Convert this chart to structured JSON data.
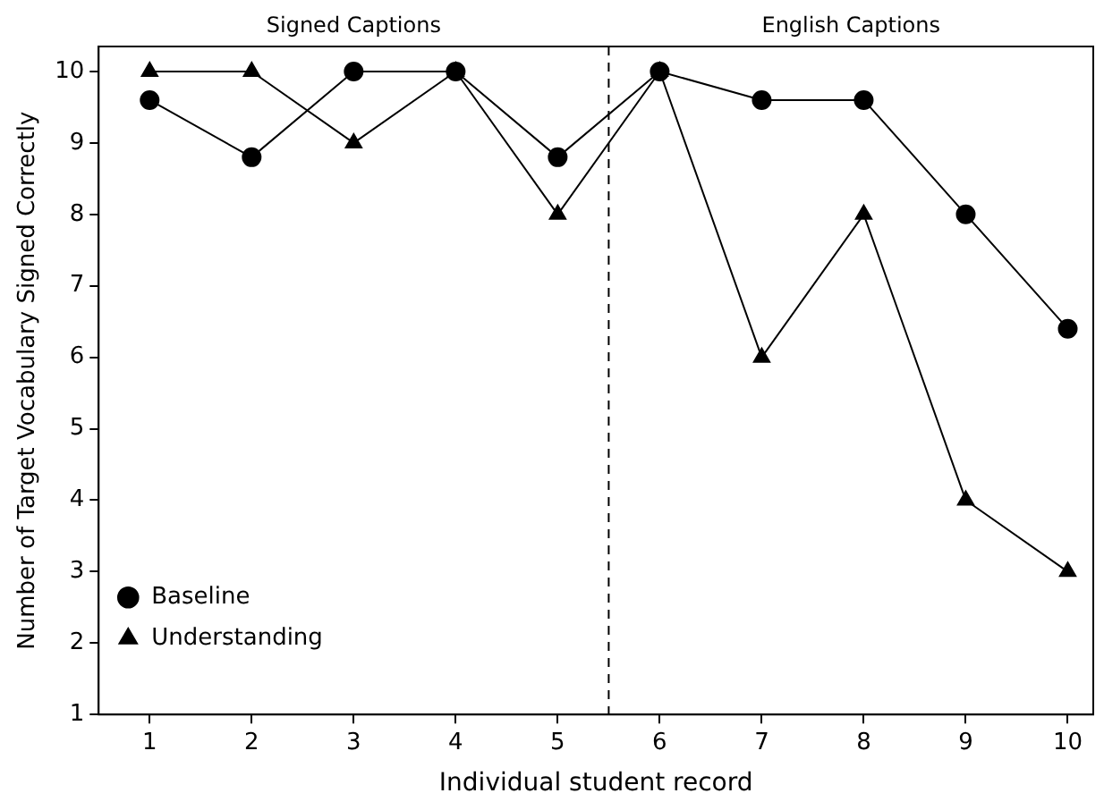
{
  "chart_data": {
    "type": "line",
    "xlabel": "Individual student record",
    "ylabel": "Number of Target Vocabulary Signed Correctly",
    "x": [
      1,
      2,
      3,
      4,
      5,
      6,
      7,
      8,
      9,
      10
    ],
    "series": [
      {
        "name": "Baseline",
        "color": "#000000",
        "marker": "circle",
        "values": [
          9.6,
          8.8,
          10,
          10,
          8.8,
          10,
          9.6,
          9.6,
          8,
          6.4
        ]
      },
      {
        "name": "Understanding",
        "color": "#000000",
        "marker": "triangle",
        "values": [
          10,
          10,
          9,
          10,
          8,
          10,
          6,
          8,
          4,
          3
        ]
      }
    ],
    "xlim": [
      0.5,
      10.25
    ],
    "xticks": [
      1,
      2,
      3,
      4,
      5,
      6,
      7,
      8,
      9,
      10
    ],
    "ylim": [
      1,
      10.35
    ],
    "yticks": [
      1,
      2,
      3,
      4,
      5,
      6,
      7,
      8,
      9,
      10
    ],
    "ref_lines": [
      {
        "axis": "x",
        "value": 5.5,
        "color": "#000000",
        "line_style": "dashed"
      }
    ],
    "annotations": [
      "Signed Captions",
      "English Captions"
    ],
    "grid": false,
    "legend": "bottom left",
    "line_style": "solid"
  }
}
